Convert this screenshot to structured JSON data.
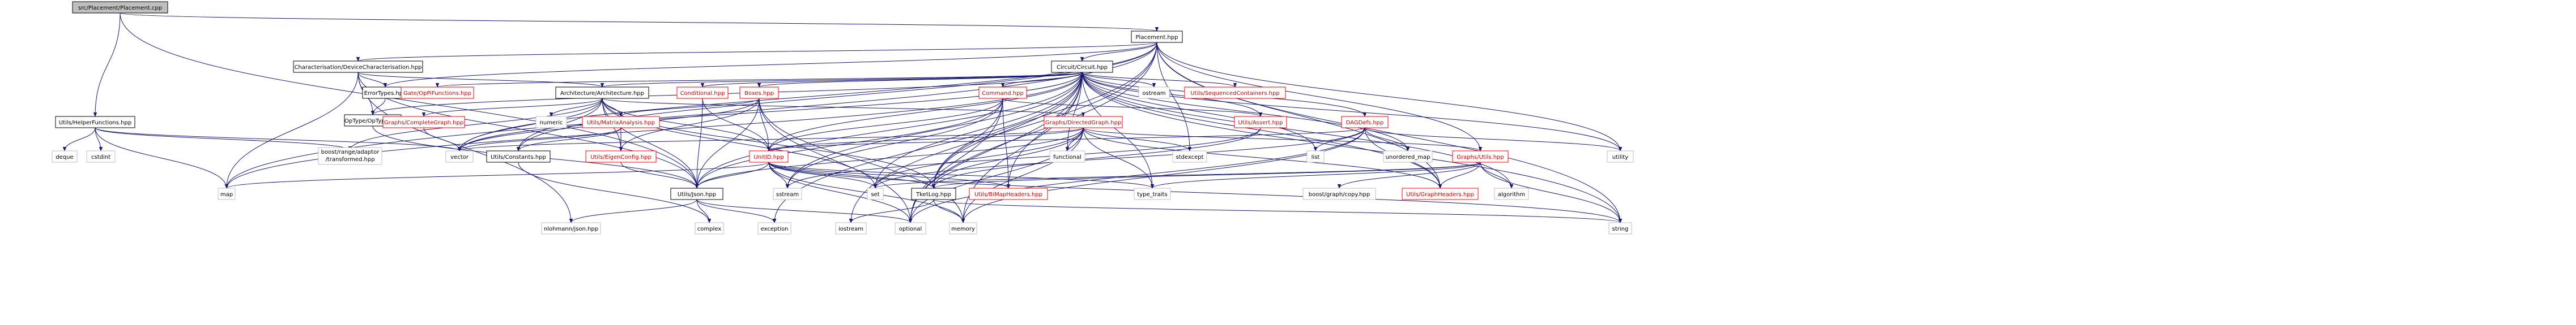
{
  "colors": {
    "edge": "#191970",
    "node_fill": "#ffffff",
    "node_border": "#000000",
    "root_fill": "#bfbfbf",
    "red_text": "#ff0000",
    "grey_border": "#bfbfbf"
  },
  "nodes": [
    {
      "id": "root",
      "label": "src/Placement/Placement.cpp",
      "style": "root"
    },
    {
      "id": "placement_hpp",
      "label": "Placement.hpp",
      "style": "normal"
    },
    {
      "id": "helper_functions",
      "label": "Utils/HelperFunctions.hpp",
      "style": "normal"
    },
    {
      "id": "char_device",
      "label": "Characterisation/DeviceCharacterisation.hpp",
      "style": "normal"
    },
    {
      "id": "circuit",
      "label": "Circuit/Circuit.hpp",
      "style": "normal"
    },
    {
      "id": "errortypes",
      "label": "ErrorTypes.hpp",
      "style": "normal"
    },
    {
      "id": "gateoppi",
      "label": "Gate/OpPiFunctions.hpp",
      "style": "red"
    },
    {
      "id": "architecture",
      "label": "Architecture/Architecture.hpp",
      "style": "normal"
    },
    {
      "id": "conditional",
      "label": "Conditional.hpp",
      "style": "red"
    },
    {
      "id": "boxes",
      "label": "Boxes.hpp",
      "style": "red"
    },
    {
      "id": "command",
      "label": "Command.hpp",
      "style": "red"
    },
    {
      "id": "ostream",
      "label": "ostream",
      "style": "grey"
    },
    {
      "id": "seqcontainers",
      "label": "Utils/SequencedContainers.hpp",
      "style": "red"
    },
    {
      "id": "optype",
      "label": "OpType/OpType.hpp",
      "style": "normal"
    },
    {
      "id": "complete_graph",
      "label": "Graphs/CompleteGraph.hpp",
      "style": "red"
    },
    {
      "id": "numeric",
      "label": "numeric",
      "style": "grey"
    },
    {
      "id": "matrix_analysis",
      "label": "Utils/MatrixAnalysis.hpp",
      "style": "red"
    },
    {
      "id": "directed_graph",
      "label": "Graphs/DirectedGraph.hpp",
      "style": "red"
    },
    {
      "id": "utils_assert",
      "label": "Utils/Assert.hpp",
      "style": "red"
    },
    {
      "id": "dagdefs",
      "label": "DAGDefs.hpp",
      "style": "red"
    },
    {
      "id": "deque",
      "label": "deque",
      "style": "grey"
    },
    {
      "id": "cstdint",
      "label": "cstdint",
      "style": "grey"
    },
    {
      "id": "boost_transformed",
      "label": "boost/range/adaptor\n/transformed.hpp",
      "style": "grey"
    },
    {
      "id": "vector",
      "label": "vector",
      "style": "grey"
    },
    {
      "id": "utils_constants",
      "label": "Utils/Constants.hpp",
      "style": "normal"
    },
    {
      "id": "eigen_config",
      "label": "Utils/EigenConfig.hpp",
      "style": "red"
    },
    {
      "id": "unitid",
      "label": "UnitID.hpp",
      "style": "red"
    },
    {
      "id": "functional",
      "label": "functional",
      "style": "grey"
    },
    {
      "id": "stdexcept",
      "label": "stdexcept",
      "style": "grey"
    },
    {
      "id": "list",
      "label": "list",
      "style": "grey"
    },
    {
      "id": "unordered_map",
      "label": "unordered_map",
      "style": "grey"
    },
    {
      "id": "graphs_utils",
      "label": "Graphs/Utils.hpp",
      "style": "red"
    },
    {
      "id": "utility",
      "label": "utility",
      "style": "grey"
    },
    {
      "id": "map",
      "label": "map",
      "style": "grey"
    },
    {
      "id": "json",
      "label": "Utils/Json.hpp",
      "style": "normal"
    },
    {
      "id": "sstream",
      "label": "sstream",
      "style": "grey"
    },
    {
      "id": "set",
      "label": "set",
      "style": "grey"
    },
    {
      "id": "tketlog",
      "label": "TketLog.hpp",
      "style": "normal"
    },
    {
      "id": "bimap",
      "label": "Utils/BiMapHeaders.hpp",
      "style": "red"
    },
    {
      "id": "type_traits",
      "label": "type_traits",
      "style": "grey"
    },
    {
      "id": "boost_graphcopy",
      "label": "boost/graph/copy.hpp",
      "style": "grey"
    },
    {
      "id": "graph_headers",
      "label": "Utils/GraphHeaders.hpp",
      "style": "red"
    },
    {
      "id": "algorithm",
      "label": "algorithm",
      "style": "grey"
    },
    {
      "id": "nlohmann",
      "label": "nlohmann/json.hpp",
      "style": "grey"
    },
    {
      "id": "complex",
      "label": "complex",
      "style": "grey"
    },
    {
      "id": "exception",
      "label": "exception",
      "style": "grey"
    },
    {
      "id": "iostream",
      "label": "iostream",
      "style": "grey"
    },
    {
      "id": "optional",
      "label": "optional",
      "style": "grey"
    },
    {
      "id": "memory",
      "label": "memory",
      "style": "grey"
    },
    {
      "id": "string",
      "label": "string",
      "style": "grey"
    }
  ],
  "edges": [
    [
      "root",
      "placement_hpp"
    ],
    [
      "root",
      "helper_functions"
    ],
    [
      "root",
      "json"
    ],
    [
      "placement_hpp",
      "char_device"
    ],
    [
      "placement_hpp",
      "circuit"
    ],
    [
      "placement_hpp",
      "map"
    ],
    [
      "placement_hpp",
      "vector"
    ],
    [
      "placement_hpp",
      "iostream"
    ],
    [
      "placement_hpp",
      "utility"
    ],
    [
      "placement_hpp",
      "optional"
    ],
    [
      "placement_hpp",
      "string"
    ],
    [
      "placement_hpp",
      "graphs_utils"
    ],
    [
      "placement_hpp",
      "tketlog"
    ],
    [
      "placement_hpp",
      "stdexcept"
    ],
    [
      "placement_hpp",
      "graph_headers"
    ],
    [
      "placement_hpp",
      "utils_constants"
    ],
    [
      "placement_hpp",
      "errortypes"
    ],
    [
      "helper_functions",
      "deque"
    ],
    [
      "helper_functions",
      "cstdint"
    ],
    [
      "helper_functions",
      "map"
    ],
    [
      "helper_functions",
      "vector"
    ],
    [
      "helper_functions",
      "boost_transformed"
    ],
    [
      "char_device",
      "architecture"
    ],
    [
      "char_device",
      "optype"
    ],
    [
      "char_device",
      "errortypes"
    ],
    [
      "char_device",
      "map"
    ],
    [
      "char_device",
      "json"
    ],
    [
      "char_device",
      "nlohmann"
    ],
    [
      "circuit",
      "gateoppi"
    ],
    [
      "circuit",
      "architecture"
    ],
    [
      "circuit",
      "conditional"
    ],
    [
      "circuit",
      "boxes"
    ],
    [
      "circuit",
      "command"
    ],
    [
      "circuit",
      "ostream"
    ],
    [
      "circuit",
      "seqcontainers"
    ],
    [
      "circuit",
      "utils_assert"
    ],
    [
      "circuit",
      "dagdefs"
    ],
    [
      "circuit",
      "unitid"
    ],
    [
      "circuit",
      "json"
    ],
    [
      "circuit",
      "optype"
    ],
    [
      "circuit",
      "functional"
    ],
    [
      "circuit",
      "list"
    ],
    [
      "circuit",
      "unordered_map"
    ],
    [
      "circuit",
      "type_traits"
    ],
    [
      "circuit",
      "sstream"
    ],
    [
      "circuit",
      "set"
    ],
    [
      "circuit",
      "map"
    ],
    [
      "circuit",
      "vector"
    ],
    [
      "circuit",
      "utility"
    ],
    [
      "circuit",
      "optional"
    ],
    [
      "circuit",
      "string"
    ],
    [
      "circuit",
      "memory"
    ],
    [
      "circuit",
      "exception"
    ],
    [
      "circuit",
      "algorithm"
    ],
    [
      "circuit",
      "bimap"
    ],
    [
      "circuit",
      "graph_headers"
    ],
    [
      "circuit",
      "tketlog"
    ],
    [
      "errortypes",
      "optype"
    ],
    [
      "architecture",
      "complete_graph"
    ],
    [
      "architecture",
      "numeric"
    ],
    [
      "architecture",
      "matrix_analysis"
    ],
    [
      "architecture",
      "directed_graph"
    ],
    [
      "architecture",
      "json"
    ],
    [
      "architecture",
      "unitid"
    ],
    [
      "architecture",
      "vector"
    ],
    [
      "architecture",
      "boost_transformed"
    ],
    [
      "architecture",
      "eigen_config"
    ],
    [
      "architecture",
      "set"
    ],
    [
      "architecture",
      "utils_constants"
    ],
    [
      "architecture",
      "tketlog"
    ],
    [
      "conditional",
      "json"
    ],
    [
      "conditional",
      "unitid"
    ],
    [
      "boxes",
      "matrix_analysis"
    ],
    [
      "boxes",
      "unitid"
    ],
    [
      "boxes",
      "eigen_config"
    ],
    [
      "boxes",
      "json"
    ],
    [
      "boxes",
      "vector"
    ],
    [
      "boxes",
      "optional"
    ],
    [
      "boxes",
      "memory"
    ],
    [
      "command",
      "unitid"
    ],
    [
      "command",
      "json"
    ],
    [
      "command",
      "sstream"
    ],
    [
      "command",
      "optional"
    ],
    [
      "command",
      "utils_assert"
    ],
    [
      "command",
      "tketlog"
    ],
    [
      "command",
      "bimap"
    ],
    [
      "optype",
      "json"
    ],
    [
      "complete_graph",
      "vector"
    ],
    [
      "matrix_analysis",
      "eigen_config"
    ],
    [
      "matrix_analysis",
      "vector"
    ],
    [
      "matrix_analysis",
      "utils_constants"
    ],
    [
      "directed_graph",
      "graphs_utils"
    ],
    [
      "directed_graph",
      "functional"
    ],
    [
      "directed_graph",
      "stdexcept"
    ],
    [
      "directed_graph",
      "set"
    ],
    [
      "directed_graph",
      "json"
    ],
    [
      "directed_graph",
      "optional"
    ],
    [
      "directed_graph",
      "type_traits"
    ],
    [
      "directed_graph",
      "memory"
    ],
    [
      "directed_graph",
      "tketlog"
    ],
    [
      "directed_graph",
      "graph_headers"
    ],
    [
      "directed_graph",
      "unitid"
    ],
    [
      "directed_graph",
      "vector"
    ],
    [
      "utils_assert",
      "sstream"
    ],
    [
      "utils_assert",
      "tketlog"
    ],
    [
      "dagdefs",
      "list"
    ],
    [
      "dagdefs",
      "unordered_map"
    ],
    [
      "dagdefs",
      "set"
    ],
    [
      "dagdefs",
      "optional"
    ],
    [
      "dagdefs",
      "memory"
    ],
    [
      "dagdefs",
      "utility"
    ],
    [
      "dagdefs",
      "graph_headers"
    ],
    [
      "dagdefs",
      "unitid"
    ],
    [
      "utils_constants",
      "complex"
    ],
    [
      "eigen_config",
      "json"
    ],
    [
      "unitid",
      "json"
    ],
    [
      "unitid",
      "map"
    ],
    [
      "unitid",
      "sstream"
    ],
    [
      "unitid",
      "set"
    ],
    [
      "unitid",
      "optional"
    ],
    [
      "unitid",
      "memory"
    ],
    [
      "unitid",
      "string"
    ],
    [
      "unitid",
      "tketlog"
    ],
    [
      "unitid",
      "bimap"
    ],
    [
      "unitid",
      "type_traits"
    ],
    [
      "graphs_utils",
      "set"
    ],
    [
      "graphs_utils",
      "boost_graphcopy"
    ],
    [
      "graphs_utils",
      "graph_headers"
    ],
    [
      "graphs_utils",
      "algorithm"
    ],
    [
      "graphs_utils",
      "tketlog"
    ],
    [
      "graphs_utils",
      "type_traits"
    ],
    [
      "graphs_utils",
      "string"
    ],
    [
      "json",
      "nlohmann"
    ],
    [
      "json",
      "complex"
    ],
    [
      "json",
      "exception"
    ],
    [
      "json",
      "optional"
    ],
    [
      "tketlog",
      "iostream"
    ],
    [
      "tketlog",
      "memory"
    ],
    [
      "tketlog",
      "string"
    ]
  ]
}
